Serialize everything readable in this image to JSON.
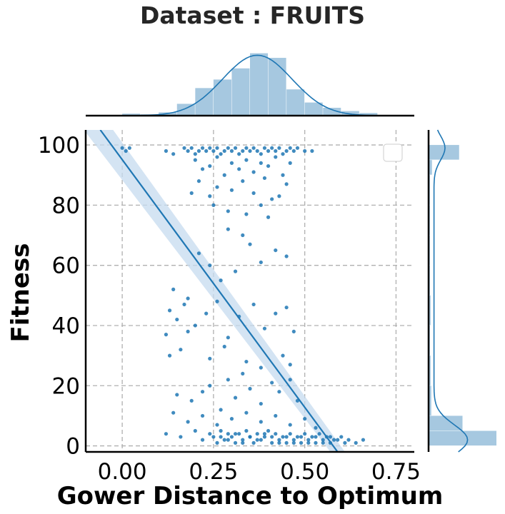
{
  "chart_data": {
    "type": "scatter",
    "title": "Dataset :  FRUITS",
    "xlabel": "Gower Distance to Optimum",
    "ylabel": "Fitness",
    "xlim": [
      -0.1,
      0.8
    ],
    "ylim": [
      -2,
      105
    ],
    "xticks": [
      "0.00",
      "0.25",
      "0.50",
      "0.75"
    ],
    "xtick_values": [
      0.0,
      0.25,
      0.5,
      0.75
    ],
    "yticks": [
      "0",
      "20",
      "40",
      "60",
      "80",
      "100"
    ],
    "ytick_values": [
      0,
      20,
      40,
      60,
      80,
      100
    ],
    "grid": true,
    "legend": "top-right (empty box)",
    "colors": {
      "points": "#1f77b4",
      "hist": "#a6c8e0",
      "ci_band": "#c6dbef"
    },
    "regression": {
      "x": [
        -0.06,
        0.59
      ],
      "y": [
        105,
        -2
      ]
    },
    "marginal_x_hist": {
      "bins": [
        0.0,
        0.05,
        0.1,
        0.15,
        0.2,
        0.25,
        0.3,
        0.35,
        0.4,
        0.45,
        0.5,
        0.55,
        0.6,
        0.65
      ],
      "density": [
        0.03,
        0.02,
        0.05,
        0.18,
        0.42,
        0.55,
        0.72,
        0.95,
        0.88,
        0.4,
        0.2,
        0.12,
        0.07,
        0.04
      ]
    },
    "marginal_y_hist": {
      "bins": [
        0,
        5,
        10,
        20,
        30,
        40,
        50,
        60,
        70,
        80,
        90,
        95,
        100
      ],
      "density": [
        1.0,
        0.5,
        0.04,
        0.03,
        0.02,
        0.03,
        0.02,
        0.02,
        0.02,
        0.02,
        0.05,
        0.45
      ]
    },
    "series": [
      {
        "points": [
          [
            0.0,
            99
          ],
          [
            0.01,
            98
          ],
          [
            0.02,
            99
          ],
          [
            0.12,
            98
          ],
          [
            0.14,
            97
          ],
          [
            0.17,
            99
          ],
          [
            0.18,
            98
          ],
          [
            0.19,
            99
          ],
          [
            0.2,
            97
          ],
          [
            0.21,
            98
          ],
          [
            0.22,
            99
          ],
          [
            0.23,
            98
          ],
          [
            0.24,
            99
          ],
          [
            0.25,
            98
          ],
          [
            0.26,
            99
          ],
          [
            0.27,
            97
          ],
          [
            0.28,
            98
          ],
          [
            0.29,
            99
          ],
          [
            0.3,
            98
          ],
          [
            0.31,
            99
          ],
          [
            0.32,
            97
          ],
          [
            0.33,
            98
          ],
          [
            0.34,
            99
          ],
          [
            0.35,
            98
          ],
          [
            0.36,
            99
          ],
          [
            0.37,
            98
          ],
          [
            0.38,
            97
          ],
          [
            0.39,
            99
          ],
          [
            0.4,
            98
          ],
          [
            0.41,
            99
          ],
          [
            0.42,
            98
          ],
          [
            0.43,
            99
          ],
          [
            0.44,
            97
          ],
          [
            0.45,
            98
          ],
          [
            0.46,
            99
          ],
          [
            0.47,
            98
          ],
          [
            0.48,
            99
          ],
          [
            0.5,
            98
          ],
          [
            0.52,
            98
          ],
          [
            0.2,
            95
          ],
          [
            0.22,
            92
          ],
          [
            0.24,
            93
          ],
          [
            0.26,
            96
          ],
          [
            0.28,
            90
          ],
          [
            0.3,
            94
          ],
          [
            0.32,
            92
          ],
          [
            0.34,
            95
          ],
          [
            0.36,
            91
          ],
          [
            0.38,
            94
          ],
          [
            0.4,
            93
          ],
          [
            0.42,
            96
          ],
          [
            0.44,
            90
          ],
          [
            0.46,
            94
          ],
          [
            0.21,
            88
          ],
          [
            0.26,
            86
          ],
          [
            0.33,
            88
          ],
          [
            0.39,
            89
          ],
          [
            0.45,
            87
          ],
          [
            0.19,
            84
          ],
          [
            0.24,
            83
          ],
          [
            0.3,
            85
          ],
          [
            0.36,
            84
          ],
          [
            0.41,
            82
          ],
          [
            0.43,
            83
          ],
          [
            0.25,
            80
          ],
          [
            0.29,
            78
          ],
          [
            0.34,
            77
          ],
          [
            0.38,
            80
          ],
          [
            0.14,
            52
          ],
          [
            0.18,
            49
          ],
          [
            0.21,
            64
          ],
          [
            0.24,
            60
          ],
          [
            0.27,
            55
          ],
          [
            0.31,
            58
          ],
          [
            0.35,
            67
          ],
          [
            0.38,
            61
          ],
          [
            0.42,
            65
          ],
          [
            0.45,
            63
          ],
          [
            0.33,
            70
          ],
          [
            0.29,
            72
          ],
          [
            0.4,
            76
          ],
          [
            0.13,
            45
          ],
          [
            0.15,
            42
          ],
          [
            0.17,
            47
          ],
          [
            0.2,
            40
          ],
          [
            0.23,
            44
          ],
          [
            0.26,
            48
          ],
          [
            0.29,
            36
          ],
          [
            0.32,
            43
          ],
          [
            0.36,
            47
          ],
          [
            0.39,
            39
          ],
          [
            0.42,
            44
          ],
          [
            0.45,
            46
          ],
          [
            0.47,
            38
          ],
          [
            0.13,
            30
          ],
          [
            0.16,
            32
          ],
          [
            0.18,
            38
          ],
          [
            0.12,
            37
          ],
          [
            0.24,
            29
          ],
          [
            0.28,
            33
          ],
          [
            0.34,
            28
          ],
          [
            0.38,
            26
          ],
          [
            0.44,
            30
          ],
          [
            0.46,
            27
          ],
          [
            0.15,
            17
          ],
          [
            0.19,
            15
          ],
          [
            0.22,
            18
          ],
          [
            0.24,
            20
          ],
          [
            0.27,
            12
          ],
          [
            0.29,
            22
          ],
          [
            0.31,
            16
          ],
          [
            0.33,
            24
          ],
          [
            0.35,
            19
          ],
          [
            0.38,
            14
          ],
          [
            0.41,
            21
          ],
          [
            0.43,
            18
          ],
          [
            0.46,
            22
          ],
          [
            0.48,
            15
          ],
          [
            0.14,
            11
          ],
          [
            0.18,
            8
          ],
          [
            0.22,
            10
          ],
          [
            0.26,
            7
          ],
          [
            0.3,
            9
          ],
          [
            0.34,
            11
          ],
          [
            0.38,
            8
          ],
          [
            0.42,
            10
          ],
          [
            0.46,
            7
          ],
          [
            0.5,
            9
          ],
          [
            0.53,
            6
          ],
          [
            0.12,
            4
          ],
          [
            0.16,
            3
          ],
          [
            0.2,
            5
          ],
          [
            0.22,
            2
          ],
          [
            0.24,
            4
          ],
          [
            0.25,
            3
          ],
          [
            0.26,
            1
          ],
          [
            0.27,
            5
          ],
          [
            0.28,
            2
          ],
          [
            0.29,
            4
          ],
          [
            0.3,
            3
          ],
          [
            0.31,
            1
          ],
          [
            0.32,
            4
          ],
          [
            0.33,
            2
          ],
          [
            0.34,
            5
          ],
          [
            0.35,
            3
          ],
          [
            0.36,
            1
          ],
          [
            0.37,
            4
          ],
          [
            0.38,
            2
          ],
          [
            0.39,
            3
          ],
          [
            0.4,
            5
          ],
          [
            0.41,
            1
          ],
          [
            0.42,
            4
          ],
          [
            0.43,
            2
          ],
          [
            0.44,
            3
          ],
          [
            0.45,
            1
          ],
          [
            0.46,
            4
          ],
          [
            0.47,
            2
          ],
          [
            0.48,
            3
          ],
          [
            0.49,
            1
          ],
          [
            0.5,
            4
          ],
          [
            0.51,
            2
          ],
          [
            0.52,
            3
          ],
          [
            0.53,
            1
          ],
          [
            0.54,
            4
          ],
          [
            0.55,
            2
          ],
          [
            0.56,
            3
          ],
          [
            0.57,
            1
          ],
          [
            0.58,
            2
          ],
          [
            0.6,
            3
          ],
          [
            0.62,
            2
          ],
          [
            0.64,
            1
          ],
          [
            0.66,
            2
          ],
          [
            0.27,
            3
          ],
          [
            0.29,
            2
          ],
          [
            0.31,
            4
          ],
          [
            0.33,
            1
          ],
          [
            0.35,
            3
          ],
          [
            0.37,
            2
          ],
          [
            0.39,
            4
          ],
          [
            0.41,
            3
          ],
          [
            0.43,
            1
          ],
          [
            0.45,
            3
          ],
          [
            0.47,
            1
          ],
          [
            0.49,
            3
          ],
          [
            0.51,
            1
          ],
          [
            0.53,
            3
          ],
          [
            0.55,
            1
          ],
          [
            0.57,
            3
          ],
          [
            0.59,
            2
          ],
          [
            0.61,
            1
          ]
        ]
      }
    ]
  }
}
